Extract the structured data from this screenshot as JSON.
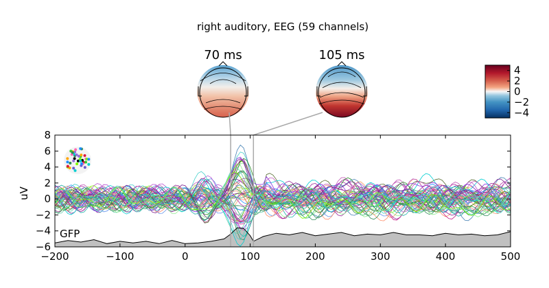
{
  "chart_data": {
    "type": "line",
    "title": "right auditory, EEG (59 channels)",
    "xlabel": "",
    "ylabel": "uV",
    "xlim": [
      -200,
      500
    ],
    "ylim": [
      -6,
      8
    ],
    "xticks": [
      -200,
      -100,
      0,
      100,
      200,
      300,
      400,
      500
    ],
    "yticks": [
      -6,
      -4,
      -2,
      0,
      2,
      4,
      6,
      8
    ],
    "xtick_labels": [
      "−200",
      "−100",
      "0",
      "100",
      "200",
      "300",
      "400",
      "500"
    ],
    "ytick_labels": [
      "−6",
      "−4",
      "−2",
      "0",
      "2",
      "4",
      "6",
      "8"
    ],
    "n_channels": 59,
    "gfp_label": "GFP",
    "gfp": {
      "x": [
        -200,
        -180,
        -160,
        -140,
        -120,
        -100,
        -80,
        -60,
        -40,
        -20,
        0,
        20,
        40,
        60,
        70,
        80,
        90,
        100,
        105,
        120,
        140,
        160,
        180,
        200,
        220,
        240,
        260,
        280,
        300,
        320,
        340,
        360,
        380,
        400,
        420,
        440,
        460,
        480,
        500
      ],
      "y": [
        -5.5,
        -5.2,
        -5.4,
        -5.1,
        -5.6,
        -5.3,
        -5.5,
        -5.3,
        -5.6,
        -5.2,
        -5.6,
        -5.5,
        -5.3,
        -5.0,
        -4.4,
        -3.6,
        -3.7,
        -4.6,
        -5.3,
        -4.7,
        -4.3,
        -4.5,
        -4.2,
        -4.6,
        -4.4,
        -4.2,
        -4.6,
        -4.4,
        -4.5,
        -4.2,
        -4.5,
        -4.5,
        -4.6,
        -4.3,
        -4.5,
        -4.4,
        -4.6,
        -4.5,
        -4.1
      ]
    },
    "topomaps": [
      {
        "label": "70 ms",
        "time": 70
      },
      {
        "label": "105 ms",
        "time": 105
      }
    ],
    "colorbar": {
      "ticks": [
        "4",
        "2",
        "0",
        "−2",
        "−4"
      ],
      "range": [
        -5,
        5
      ],
      "colormap": "RdBu_r"
    },
    "colors": {
      "gfp_fill": "#c0c0c0",
      "marker_line": "#a9a9a9"
    }
  }
}
